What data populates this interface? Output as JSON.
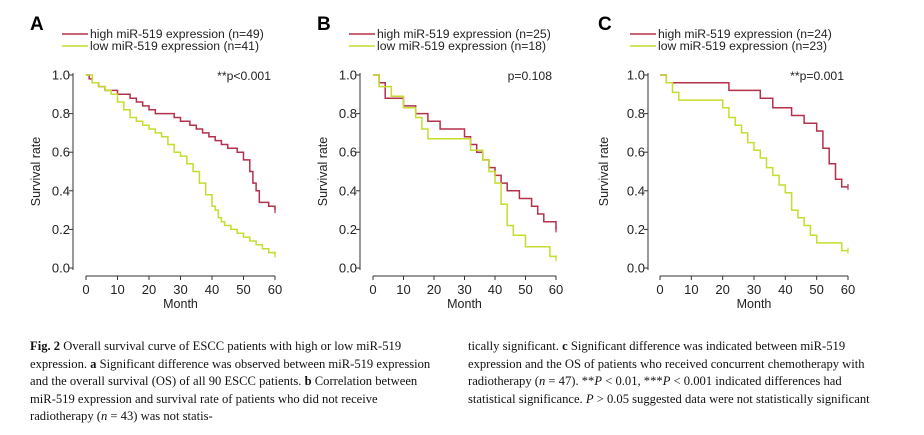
{
  "figure": {
    "panels": [
      {
        "letter": "A",
        "pvalue": "**p<0.001",
        "legend": [
          "high miR-519 expression (n=49)",
          "low miR-519 expression (n=41)"
        ]
      },
      {
        "letter": "B",
        "pvalue": "p=0.108",
        "legend": [
          "high miR-519 expression (n=25)",
          "low miR-519 expression (n=18)"
        ]
      },
      {
        "letter": "C",
        "pvalue": "**p=0.001",
        "legend": [
          "high miR-519 expression (n=24)",
          "low miR-519 expression (n=23)"
        ]
      }
    ]
  },
  "chart_data": [
    {
      "type": "line",
      "title": "A",
      "xlabel": "Month",
      "ylabel": "Survival rate",
      "xlim": [
        0,
        60
      ],
      "ylim": [
        0,
        1.0
      ],
      "xticks": [
        0,
        10,
        20,
        30,
        40,
        50,
        60
      ],
      "yticks": [
        "0.0",
        "0.2",
        "0.4",
        "0.6",
        "0.8",
        "1.0"
      ],
      "series": [
        {
          "name": "high miR-519 expression (n=49)",
          "color": "#b5304a",
          "x": [
            0,
            1,
            2,
            4,
            6,
            8,
            10,
            14,
            16,
            18,
            20,
            22,
            24,
            26,
            28,
            30,
            33,
            35,
            37,
            39,
            41,
            43,
            45,
            48,
            50,
            52,
            53,
            54,
            55,
            58,
            60
          ],
          "y": [
            1.0,
            0.98,
            0.96,
            0.94,
            0.92,
            0.92,
            0.9,
            0.88,
            0.86,
            0.84,
            0.82,
            0.8,
            0.8,
            0.8,
            0.78,
            0.76,
            0.74,
            0.72,
            0.7,
            0.68,
            0.66,
            0.64,
            0.62,
            0.6,
            0.56,
            0.5,
            0.44,
            0.4,
            0.34,
            0.32,
            0.3
          ]
        },
        {
          "name": "low miR-519 expression (n=41)",
          "color": "#c7dc2e",
          "x": [
            0,
            2,
            4,
            6,
            8,
            10,
            12,
            14,
            16,
            18,
            20,
            22,
            24,
            26,
            28,
            30,
            32,
            34,
            36,
            38,
            40,
            41,
            42,
            43,
            44,
            46,
            48,
            50,
            52,
            54,
            56,
            58,
            60
          ],
          "y": [
            1.0,
            0.96,
            0.94,
            0.92,
            0.9,
            0.86,
            0.82,
            0.78,
            0.76,
            0.74,
            0.72,
            0.7,
            0.68,
            0.64,
            0.6,
            0.58,
            0.54,
            0.5,
            0.44,
            0.38,
            0.32,
            0.3,
            0.26,
            0.24,
            0.22,
            0.2,
            0.18,
            0.16,
            0.14,
            0.12,
            0.1,
            0.08,
            0.07
          ]
        }
      ]
    },
    {
      "type": "line",
      "title": "B",
      "xlabel": "Month",
      "ylabel": "Survival rate",
      "xlim": [
        0,
        60
      ],
      "ylim": [
        0,
        1.0
      ],
      "xticks": [
        0,
        10,
        20,
        30,
        40,
        50,
        60
      ],
      "yticks": [
        "0.0",
        "0.2",
        "0.4",
        "0.6",
        "0.8",
        "1.0"
      ],
      "series": [
        {
          "name": "high miR-519 expression (n=25)",
          "color": "#b5304a",
          "x": [
            0,
            2,
            4,
            6,
            10,
            14,
            18,
            22,
            26,
            30,
            32,
            34,
            36,
            38,
            40,
            42,
            44,
            48,
            52,
            54,
            56,
            58,
            60
          ],
          "y": [
            1.0,
            0.96,
            0.88,
            0.88,
            0.84,
            0.8,
            0.76,
            0.72,
            0.72,
            0.68,
            0.64,
            0.6,
            0.56,
            0.52,
            0.48,
            0.44,
            0.4,
            0.36,
            0.32,
            0.28,
            0.24,
            0.24,
            0.2
          ]
        },
        {
          "name": "low miR-519 expression (n=18)",
          "color": "#c7dc2e",
          "x": [
            0,
            2,
            6,
            10,
            14,
            16,
            18,
            22,
            30,
            32,
            36,
            38,
            40,
            42,
            44,
            46,
            50,
            56,
            58,
            60
          ],
          "y": [
            1.0,
            0.94,
            0.89,
            0.83,
            0.78,
            0.72,
            0.67,
            0.67,
            0.67,
            0.61,
            0.56,
            0.5,
            0.44,
            0.33,
            0.22,
            0.17,
            0.11,
            0.11,
            0.06,
            0.05
          ]
        }
      ]
    },
    {
      "type": "line",
      "title": "C",
      "xlabel": "Month",
      "ylabel": "Survival rate",
      "xlim": [
        0,
        60
      ],
      "ylim": [
        0,
        1.0
      ],
      "xticks": [
        0,
        10,
        20,
        30,
        40,
        50,
        60
      ],
      "yticks": [
        "0.0",
        "0.2",
        "0.4",
        "0.6",
        "0.8",
        "1.0"
      ],
      "series": [
        {
          "name": "high miR-519 expression (n=24)",
          "color": "#b5304a",
          "x": [
            0,
            2,
            12,
            22,
            28,
            32,
            36,
            42,
            46,
            50,
            52,
            54,
            56,
            58,
            60
          ],
          "y": [
            1.0,
            0.96,
            0.96,
            0.92,
            0.92,
            0.88,
            0.83,
            0.79,
            0.75,
            0.71,
            0.62,
            0.54,
            0.46,
            0.42,
            0.42
          ]
        },
        {
          "name": "low miR-519 expression (n=23)",
          "color": "#c7dc2e",
          "x": [
            0,
            2,
            4,
            6,
            12,
            16,
            20,
            22,
            24,
            26,
            28,
            30,
            32,
            34,
            36,
            38,
            40,
            42,
            44,
            46,
            48,
            50,
            54,
            56,
            58,
            60
          ],
          "y": [
            1.0,
            0.96,
            0.91,
            0.87,
            0.87,
            0.87,
            0.83,
            0.78,
            0.74,
            0.7,
            0.65,
            0.61,
            0.57,
            0.52,
            0.48,
            0.43,
            0.39,
            0.3,
            0.26,
            0.22,
            0.17,
            0.13,
            0.13,
            0.13,
            0.09,
            0.09
          ]
        }
      ]
    }
  ],
  "caption": {
    "label": "Fig. 2",
    "left_1": " Overall survival curve of ESCC patients with high or low miR-519 expression. ",
    "a": "a",
    "left_2": " Significant difference was observed between miR-519 expression and the overall survival (OS) of all 90 ESCC patients. ",
    "b": "b",
    "left_3": " Correlation between miR-519 expression and survival rate of patients who did not receive radiotherapy (",
    "n43_italic": "n",
    "n43": " = 43) was not statis-",
    "right_1": "tically significant. ",
    "c": "c",
    "right_2": " Significant difference was indicated between miR-519 expression and the OS of patients who received concurrent chemotherapy with radiotherapy (",
    "n47_italic": "n",
    "n47": " = 47). **",
    "p1_italic": "P",
    "p1": " < 0.01, ***",
    "p2_italic": "P",
    "p2": " < 0.001 indicated differences had statistical significance. ",
    "p3_italic": "P",
    "p3": " > 0.05 suggested data were not statistically significant"
  }
}
